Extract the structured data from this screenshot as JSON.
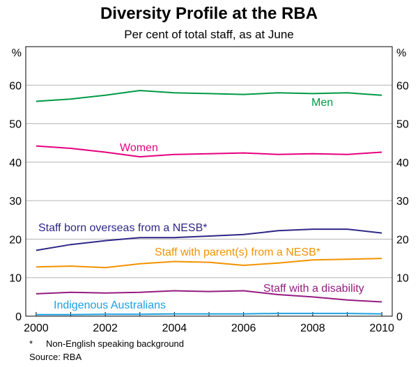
{
  "chart_data": {
    "type": "line",
    "title": "Diversity Profile at the RBA",
    "subtitle": "Per cent of total staff, as at June",
    "ylabel_left": "%",
    "ylabel_right": "%",
    "ylim": [
      0,
      70
    ],
    "yticks": [
      0,
      10,
      20,
      30,
      40,
      50,
      60
    ],
    "xlim": [
      1999.7,
      2010.3
    ],
    "xticks": [
      2000,
      2002,
      2004,
      2006,
      2008,
      2010
    ],
    "grid": true,
    "x": [
      2000,
      2001,
      2002,
      2003,
      2004,
      2005,
      2006,
      2007,
      2008,
      2009,
      2010
    ],
    "series": [
      {
        "name": "Men",
        "color": "#009944",
        "values": [
          55.8,
          56.4,
          57.4,
          58.6,
          58.0,
          57.8,
          57.6,
          58.0,
          57.8,
          58.0,
          57.4
        ]
      },
      {
        "name": "Women",
        "color": "#e6007e",
        "values": [
          44.2,
          43.6,
          42.6,
          41.4,
          42.0,
          42.2,
          42.4,
          42.0,
          42.2,
          42.0,
          42.6
        ]
      },
      {
        "name": "Staff born overseas from a NESB*",
        "color": "#2e2787",
        "values": [
          17.1,
          18.6,
          19.6,
          20.4,
          20.4,
          20.8,
          21.2,
          22.2,
          22.6,
          22.6,
          21.6
        ]
      },
      {
        "name": "Staff with parent(s) from a NESB*",
        "color": "#f39200",
        "values": [
          12.8,
          13.0,
          12.6,
          13.6,
          14.2,
          14.0,
          13.2,
          13.8,
          14.6,
          14.8,
          15.0
        ]
      },
      {
        "name": "Staff with a disability",
        "color": "#951b81",
        "values": [
          5.8,
          6.2,
          6.0,
          6.2,
          6.6,
          6.4,
          6.6,
          5.6,
          5.0,
          4.2,
          3.7
        ]
      },
      {
        "name": "Indigenous Australians",
        "color": "#1ba1e2",
        "values": [
          0.4,
          0.4,
          0.5,
          0.5,
          0.6,
          0.6,
          0.6,
          0.7,
          0.7,
          0.7,
          0.6
        ]
      }
    ]
  },
  "footnotes": {
    "marker": "*",
    "nesb": "Non-English speaking background",
    "source": "Source: RBA"
  }
}
